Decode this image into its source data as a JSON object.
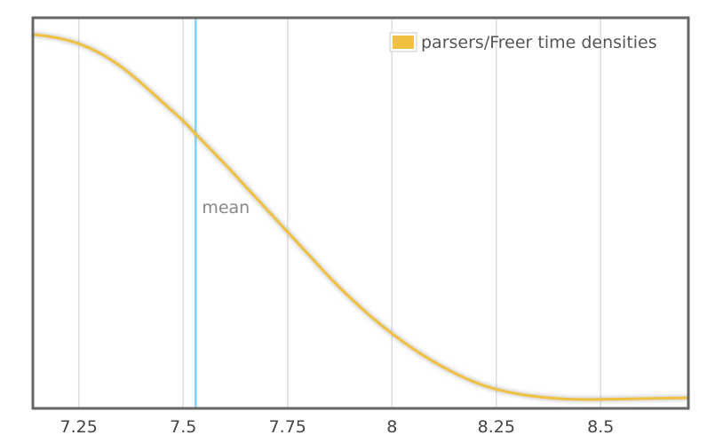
{
  "chart_data": {
    "type": "line",
    "title": "",
    "xlabel": "",
    "ylabel": "",
    "xlim": [
      7.14,
      8.71
    ],
    "ylim": [
      0,
      1
    ],
    "grid": "vertical",
    "legend_placement": "top-right",
    "x_ticks": [
      {
        "value": 7.25,
        "label": "7.25"
      },
      {
        "value": 7.5,
        "label": "7.5"
      },
      {
        "value": 7.75,
        "label": "7.75"
      },
      {
        "value": 8,
        "label": "8"
      },
      {
        "value": 8.25,
        "label": "8.25"
      },
      {
        "value": 8.5,
        "label": "8.5"
      }
    ],
    "series": [
      {
        "name": "parsers/Freer time densities",
        "color": "#f0c040",
        "x": [
          7.14,
          7.2,
          7.25,
          7.3,
          7.35,
          7.4,
          7.45,
          7.5,
          7.53,
          7.6,
          7.65,
          7.7,
          7.75,
          7.8,
          7.85,
          7.9,
          7.95,
          8.0,
          8.05,
          8.1,
          8.15,
          8.2,
          8.25,
          8.3,
          8.35,
          8.4,
          8.45,
          8.5,
          8.55,
          8.6,
          8.65,
          8.71
        ],
        "y": [
          0.975,
          0.965,
          0.95,
          0.925,
          0.89,
          0.845,
          0.795,
          0.745,
          0.71,
          0.63,
          0.57,
          0.51,
          0.45,
          0.39,
          0.33,
          0.275,
          0.225,
          0.18,
          0.14,
          0.105,
          0.075,
          0.05,
          0.032,
          0.02,
          0.012,
          0.007,
          0.005,
          0.005,
          0.006,
          0.007,
          0.008,
          0.009
        ]
      }
    ],
    "annotations": [
      {
        "type": "vline",
        "x": 7.53,
        "label": "mean",
        "color": "#7dd3f5"
      }
    ]
  }
}
